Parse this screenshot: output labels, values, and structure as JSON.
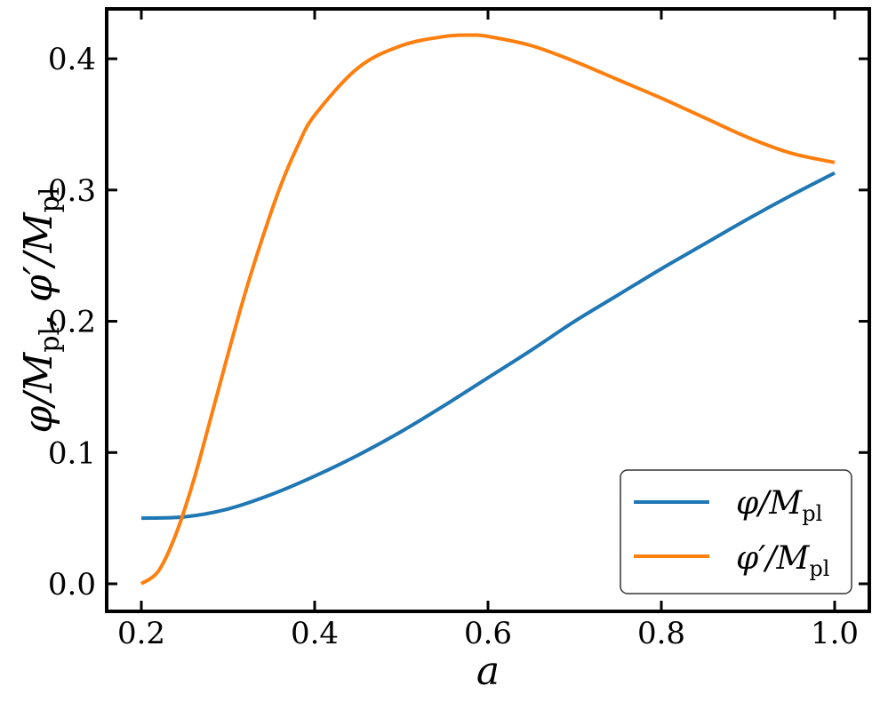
{
  "chart_data": {
    "type": "line",
    "xlabel": "a",
    "ylabel": {
      "parts": [
        "φ/M",
        "pl",
        ", φ′/M",
        "pl"
      ]
    },
    "xlim": [
      0.16,
      1.04
    ],
    "ylim": [
      -0.021,
      0.438
    ],
    "xticks": [
      0.2,
      0.4,
      0.6,
      0.8,
      1.0
    ],
    "xtick_labels": [
      "0.2",
      "0.4",
      "0.6",
      "0.8",
      "1.0"
    ],
    "yticks": [
      0.0,
      0.1,
      0.2,
      0.3,
      0.4
    ],
    "ytick_labels": [
      "0.0",
      "0.1",
      "0.2",
      "0.3",
      "0.4"
    ],
    "grid": false,
    "legend_position": "bottom-right",
    "series": [
      {
        "name": "φ/M_pl",
        "label_main": "φ/M",
        "label_sub": "pl",
        "color": "#1f77b4",
        "x": [
          0.2,
          0.25,
          0.3,
          0.35,
          0.4,
          0.45,
          0.5,
          0.55,
          0.6,
          0.65,
          0.7,
          0.75,
          0.8,
          0.85,
          0.9,
          0.95,
          1.0
        ],
        "y": [
          0.05,
          0.051,
          0.057,
          0.068,
          0.082,
          0.098,
          0.116,
          0.136,
          0.157,
          0.178,
          0.2,
          0.22,
          0.24,
          0.259,
          0.278,
          0.296,
          0.313
        ]
      },
      {
        "name": "φ′/M_pl",
        "label_main": "φ′/M",
        "label_sub": "pl",
        "color": "#ff7f0e",
        "x": [
          0.2,
          0.22,
          0.24,
          0.26,
          0.28,
          0.3,
          0.32,
          0.34,
          0.36,
          0.38,
          0.4,
          0.45,
          0.5,
          0.55,
          0.58,
          0.6,
          0.65,
          0.7,
          0.75,
          0.8,
          0.85,
          0.9,
          0.95,
          1.0
        ],
        "y": [
          0.0,
          0.01,
          0.038,
          0.078,
          0.126,
          0.175,
          0.222,
          0.264,
          0.302,
          0.333,
          0.357,
          0.393,
          0.41,
          0.417,
          0.418,
          0.417,
          0.41,
          0.398,
          0.384,
          0.37,
          0.355,
          0.34,
          0.328,
          0.321
        ]
      }
    ]
  }
}
